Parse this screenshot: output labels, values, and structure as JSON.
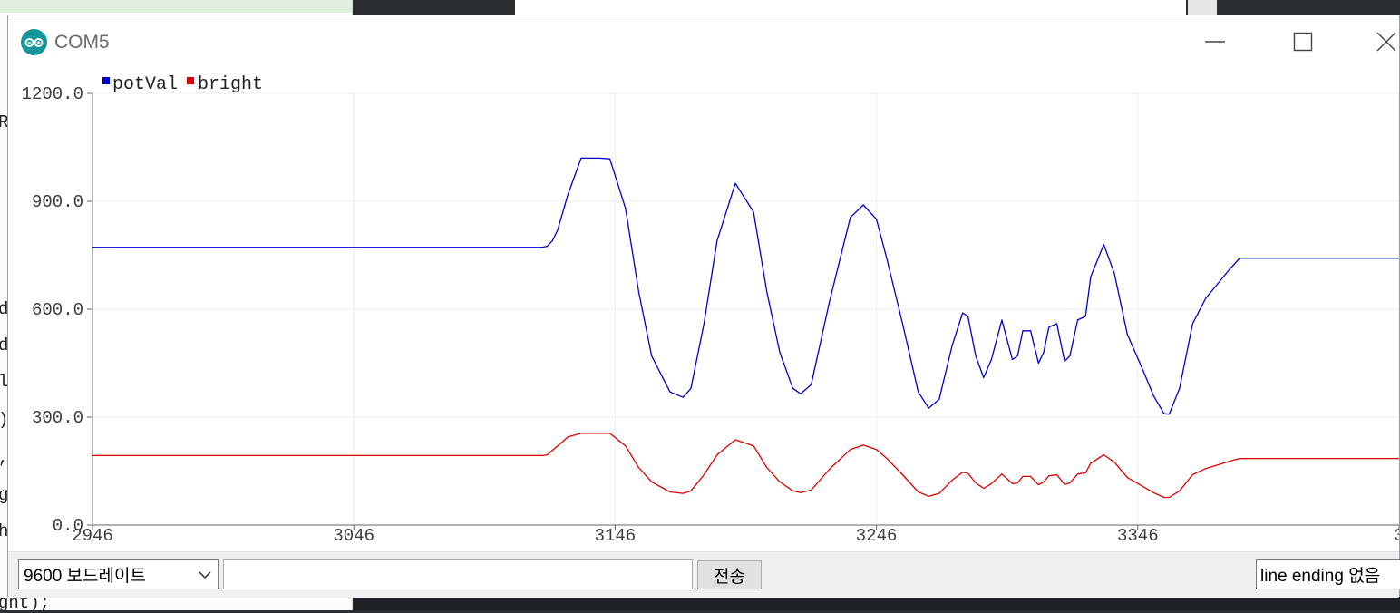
{
  "window": {
    "title": "COM5"
  },
  "background_editor": {
    "fragments": [
      "R",
      "d",
      "d",
      "l",
      ")",
      ",",
      "g",
      "h",
      "ght);"
    ]
  },
  "plotter": {
    "legend": [
      {
        "name": "potVal",
        "color": "#0000cc"
      },
      {
        "name": "bright",
        "color": "#dd0000"
      }
    ]
  },
  "chart_data": {
    "type": "line",
    "title": "",
    "xlabel": "",
    "ylabel": "",
    "ylim": [
      0,
      1200
    ],
    "xlim": [
      2946,
      3446
    ],
    "y_ticks": [
      "0.0",
      "300.0",
      "600.0",
      "900.0",
      "1200.0"
    ],
    "x_ticks": [
      "2946",
      "3046",
      "3146",
      "3246",
      "3346",
      "3"
    ],
    "grid": true,
    "legend_position": "top-left",
    "series": [
      {
        "name": "potVal",
        "color": "#0000cc",
        "x": [
          2946,
          3118,
          3120,
          3122,
          3124,
          3128,
          3133,
          3137,
          3140,
          3144,
          3150,
          3155,
          3160,
          3167,
          3172,
          3175,
          3180,
          3185,
          3192,
          3199,
          3204,
          3209,
          3214,
          3217,
          3221,
          3228,
          3236,
          3241,
          3246,
          3250,
          3256,
          3262,
          3266,
          3270,
          3275,
          3279,
          3281,
          3284,
          3287,
          3290,
          3294,
          3298,
          3300,
          3302,
          3305,
          3308,
          3310,
          3312,
          3315,
          3318,
          3320,
          3323,
          3326,
          3328,
          3333,
          3337,
          3342,
          3348,
          3352,
          3356,
          3358,
          3362,
          3367,
          3372,
          3381,
          3385,
          3446
        ],
        "values": [
          772,
          772,
          775,
          790,
          820,
          920,
          1020,
          1020,
          1020,
          1018,
          880,
          650,
          470,
          370,
          355,
          380,
          560,
          790,
          950,
          870,
          650,
          480,
          380,
          365,
          390,
          620,
          855,
          890,
          850,
          740,
          560,
          370,
          325,
          350,
          500,
          590,
          580,
          470,
          410,
          460,
          570,
          460,
          470,
          540,
          540,
          450,
          480,
          550,
          560,
          455,
          470,
          570,
          580,
          690,
          780,
          700,
          530,
          430,
          360,
          310,
          308,
          380,
          560,
          630,
          710,
          742,
          742
        ]
      },
      {
        "name": "bright",
        "color": "#dd0000",
        "x": [
          2946,
          3118,
          3120,
          3124,
          3128,
          3133,
          3137,
          3140,
          3144,
          3150,
          3155,
          3160,
          3167,
          3172,
          3175,
          3180,
          3185,
          3192,
          3199,
          3204,
          3209,
          3214,
          3217,
          3221,
          3228,
          3236,
          3241,
          3246,
          3250,
          3256,
          3262,
          3266,
          3270,
          3275,
          3279,
          3281,
          3284,
          3287,
          3290,
          3294,
          3298,
          3300,
          3302,
          3305,
          3308,
          3310,
          3312,
          3315,
          3318,
          3320,
          3323,
          3326,
          3328,
          3333,
          3337,
          3342,
          3348,
          3352,
          3356,
          3358,
          3362,
          3367,
          3372,
          3381,
          3385,
          3446
        ],
        "values": [
          193,
          193,
          195,
          220,
          245,
          255,
          255,
          255,
          255,
          220,
          160,
          120,
          92,
          88,
          95,
          140,
          195,
          237,
          220,
          160,
          120,
          95,
          90,
          97,
          155,
          210,
          222,
          210,
          185,
          140,
          92,
          80,
          88,
          125,
          147,
          144,
          117,
          102,
          115,
          142,
          115,
          117,
          135,
          135,
          112,
          120,
          137,
          140,
          113,
          117,
          142,
          145,
          172,
          195,
          175,
          132,
          107,
          90,
          77,
          77,
          95,
          140,
          157,
          177,
          185,
          185
        ]
      }
    ]
  },
  "controls": {
    "baud_select_value": "9600 보드레이트",
    "send_input_value": "",
    "send_button_label": "전송",
    "line_ending_value": "line ending 없음"
  }
}
